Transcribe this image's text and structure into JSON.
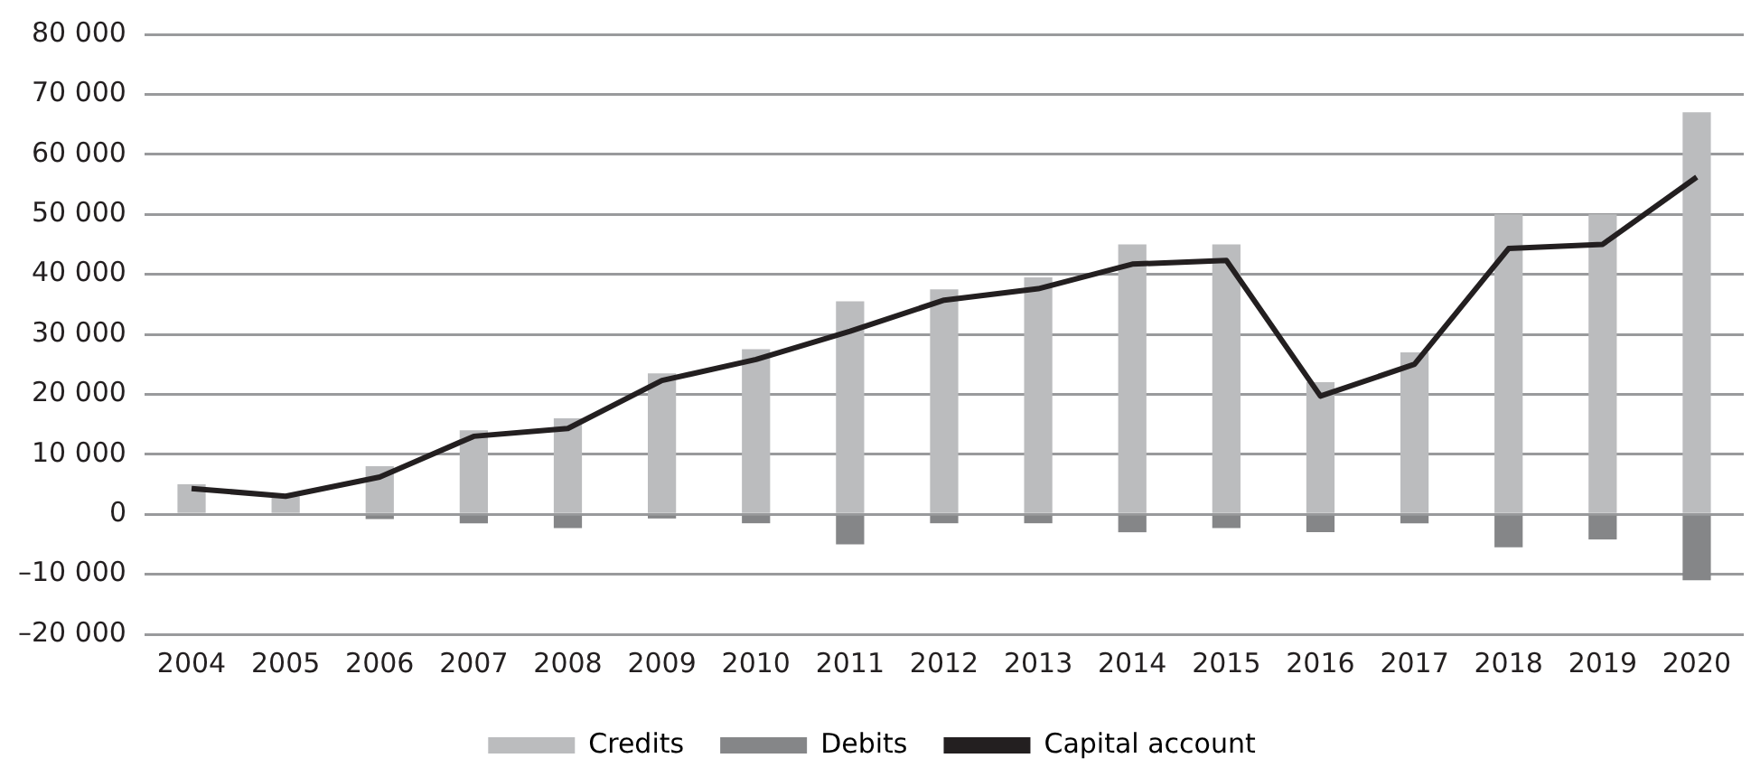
{
  "chart_data": {
    "type": "bar",
    "stacked": true,
    "categories": [
      "2004",
      "2005",
      "2006",
      "2007",
      "2008",
      "2009",
      "2010",
      "2011",
      "2012",
      "2013",
      "2014",
      "2015",
      "2016",
      "2017",
      "2018",
      "2019",
      "2020"
    ],
    "series": [
      {
        "name": "Credits",
        "color": "#bbbcbe",
        "values": [
          5000,
          3000,
          8000,
          14000,
          16000,
          23500,
          27500,
          35500,
          37500,
          39500,
          45000,
          45000,
          22000,
          27000,
          50000,
          50000,
          67000
        ]
      },
      {
        "name": "Debits",
        "color": "#858688",
        "values": [
          0,
          0,
          -800,
          -1500,
          -2300,
          -700,
          -1500,
          -5000,
          -1500,
          -1500,
          -3000,
          -2300,
          -3000,
          -1500,
          -5500,
          -4200,
          -11000
        ]
      },
      {
        "name": "Capital account",
        "type": "line",
        "color": "#231f20",
        "values": [
          4300,
          3000,
          6200,
          13000,
          14300,
          22300,
          25800,
          30500,
          35700,
          37600,
          41700,
          42300,
          19700,
          25000,
          44300,
          45000,
          56200
        ]
      }
    ],
    "ylim": [
      -20000,
      80000
    ],
    "yticks": [
      {
        "value": -20000,
        "label": "–20 000"
      },
      {
        "value": -10000,
        "label": "–10 000"
      },
      {
        "value": 0,
        "label": "0"
      },
      {
        "value": 10000,
        "label": "10 000"
      },
      {
        "value": 20000,
        "label": "20 000"
      },
      {
        "value": 30000,
        "label": "30 000"
      },
      {
        "value": 40000,
        "label": "40 000"
      },
      {
        "value": 50000,
        "label": "50 000"
      },
      {
        "value": 60000,
        "label": "60 000"
      },
      {
        "value": 70000,
        "label": "70 000"
      },
      {
        "value": 80000,
        "label": "80 000"
      }
    ],
    "grid": "y",
    "legend": "bottom",
    "marker": "none"
  }
}
